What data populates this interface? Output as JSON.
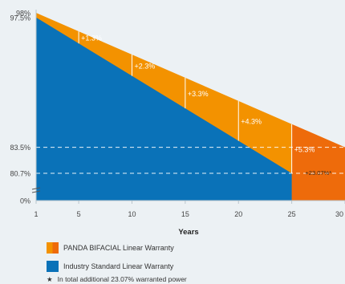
{
  "chart_data": {
    "type": "area",
    "x": [
      1,
      5,
      10,
      15,
      20,
      25,
      30
    ],
    "xticks": [
      "1",
      "5",
      "10",
      "15",
      "20",
      "25",
      "30"
    ],
    "xlabel": "Years",
    "yticks": [
      "98%",
      "97.5%",
      "83.5%",
      "80.7%",
      "0%"
    ],
    "series": [
      {
        "name": "PANDA BIFACIAL Linear Warranty",
        "color": "#f39200",
        "points": [
          [
            1,
            98
          ],
          [
            30,
            83.5
          ]
        ]
      },
      {
        "name": "Industry Standard Linear Warranty",
        "color": "#0a72b8",
        "points": [
          [
            1,
            97.5
          ],
          [
            25,
            80.7
          ]
        ]
      }
    ],
    "gap_annotations": [
      {
        "x": 5,
        "label": "+1.3%"
      },
      {
        "x": 10,
        "label": "+2.3%"
      },
      {
        "x": 15,
        "label": "+3.3%"
      },
      {
        "x": 20,
        "label": "+4.3%"
      },
      {
        "x": 25,
        "label": "+5.3%"
      }
    ],
    "extension_label": "+23.07%*",
    "extension_color": "#ee6b0b",
    "reference_lines": [
      83.5,
      80.7
    ],
    "axis_break": true
  },
  "legend": {
    "panda_label": "PANDA BIFACIAL Linear Warranty",
    "industry_label": "Industry Standard Linear Warranty",
    "note_symbol": "★",
    "note": "In total additional 23.07% warranted power"
  }
}
